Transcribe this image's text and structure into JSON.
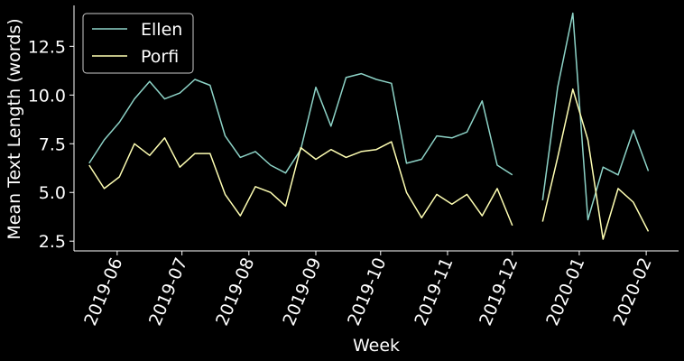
{
  "chart_data": {
    "type": "line",
    "title": "",
    "xlabel": "Week",
    "ylabel": "Mean Text Length (words)",
    "ylim": [
      2.0,
      14.6
    ],
    "xlim": [
      "2019-05-12",
      "2020-02-16"
    ],
    "grid": false,
    "legend_position": "top-left",
    "y_ticks": [
      "2.5",
      "5.0",
      "7.5",
      "10.0",
      "12.5"
    ],
    "x_ticks": [
      "2019-06",
      "2019-07",
      "2019-08",
      "2019-09",
      "2019-10",
      "2019-11",
      "2019-12",
      "2020-01",
      "2020-02"
    ],
    "x": [
      "2019-05-19",
      "2019-05-26",
      "2019-06-02",
      "2019-06-09",
      "2019-06-16",
      "2019-06-23",
      "2019-06-30",
      "2019-07-07",
      "2019-07-14",
      "2019-07-21",
      "2019-07-28",
      "2019-08-04",
      "2019-08-11",
      "2019-08-18",
      "2019-08-25",
      "2019-09-01",
      "2019-09-08",
      "2019-09-15",
      "2019-09-22",
      "2019-09-29",
      "2019-10-06",
      "2019-10-13",
      "2019-10-20",
      "2019-10-27",
      "2019-11-03",
      "2019-11-10",
      "2019-11-17",
      "2019-11-24",
      "2019-12-01",
      "2019-12-08",
      "2019-12-15",
      "2019-12-22",
      "2019-12-29",
      "2020-01-05",
      "2020-01-12",
      "2020-01-19",
      "2020-01-26",
      "2020-02-02"
    ],
    "series": [
      {
        "name": "Ellen",
        "color": "#8dd3c7",
        "values": [
          6.5,
          7.7,
          8.6,
          9.8,
          10.7,
          9.8,
          10.1,
          10.8,
          10.5,
          7.9,
          6.8,
          7.1,
          6.4,
          6.0,
          7.2,
          10.4,
          8.4,
          10.9,
          11.1,
          10.8,
          10.6,
          6.5,
          6.7,
          7.9,
          7.8,
          8.1,
          9.7,
          6.4,
          5.9,
          null,
          4.6,
          10.4,
          14.2,
          3.6,
          6.3,
          5.9,
          8.2,
          6.1
        ]
      },
      {
        "name": "Porfi",
        "color": "#ffffb3",
        "values": [
          6.4,
          5.2,
          5.8,
          7.5,
          6.9,
          7.8,
          6.3,
          7.0,
          7.0,
          4.9,
          3.8,
          5.3,
          5.0,
          4.3,
          7.3,
          6.7,
          7.2,
          6.8,
          7.1,
          7.2,
          7.6,
          5.0,
          3.7,
          4.9,
          4.4,
          4.9,
          3.8,
          5.2,
          3.3,
          null,
          3.5,
          6.8,
          10.3,
          7.7,
          2.6,
          5.2,
          4.5,
          3.0
        ]
      }
    ]
  }
}
